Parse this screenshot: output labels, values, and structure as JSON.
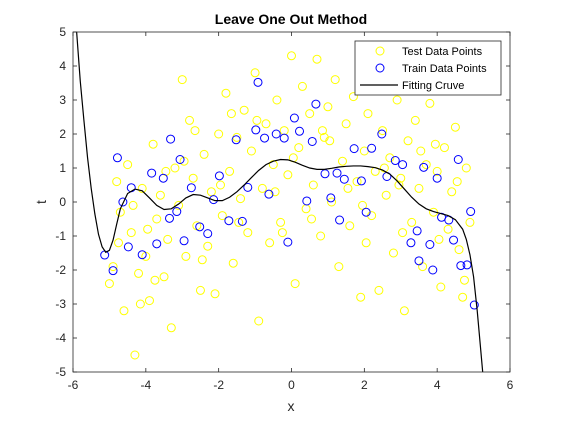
{
  "chart_data": {
    "type": "scatter",
    "title": "Leave One Out Method",
    "xlabel": "x",
    "ylabel": "t",
    "xlim": [
      -6,
      6
    ],
    "ylim": [
      -5,
      5
    ],
    "xticks": [
      "-6",
      "-4",
      "-2",
      "0",
      "2",
      "4",
      "6"
    ],
    "yticks": [
      "5",
      "4",
      "3",
      "2",
      "1",
      "0",
      "-1",
      "-2",
      "-3",
      "-4",
      "-5"
    ],
    "grid": false,
    "legend_position": "top-right",
    "series": [
      {
        "name": "Test Data Points",
        "kind": "markers",
        "marker": "open-circle",
        "color": "#ffff00",
        "points": [
          [
            -5.0,
            -2.4
          ],
          [
            -4.9,
            -1.9
          ],
          [
            -4.8,
            0.6
          ],
          [
            -4.7,
            -0.3
          ],
          [
            -4.6,
            -3.2
          ],
          [
            -4.5,
            1.1
          ],
          [
            -4.4,
            -0.9
          ],
          [
            -4.3,
            -4.5
          ],
          [
            -4.2,
            -2.1
          ],
          [
            -4.1,
            0.4
          ],
          [
            -4.0,
            -1.6
          ],
          [
            -3.9,
            -2.9
          ],
          [
            -3.8,
            1.7
          ],
          [
            -3.7,
            -0.5
          ],
          [
            -3.6,
            0.2
          ],
          [
            -3.5,
            -2.2
          ],
          [
            -3.4,
            -1.1
          ],
          [
            -3.3,
            -3.7
          ],
          [
            -3.2,
            1.0
          ],
          [
            -3.1,
            -0.1
          ],
          [
            -3.0,
            3.6
          ],
          [
            -2.9,
            -1.6
          ],
          [
            -2.8,
            2.4
          ],
          [
            -2.7,
            0.7
          ],
          [
            -2.6,
            -0.7
          ],
          [
            -2.5,
            -2.6
          ],
          [
            -2.4,
            1.4
          ],
          [
            -2.3,
            -1.3
          ],
          [
            -2.2,
            0.3
          ],
          [
            -2.1,
            -2.7
          ],
          [
            -2.0,
            2.0
          ],
          [
            -1.9,
            -0.4
          ],
          [
            -1.8,
            3.2
          ],
          [
            -1.7,
            0.9
          ],
          [
            -1.6,
            -1.8
          ],
          [
            -1.5,
            1.9
          ],
          [
            -1.4,
            0.1
          ],
          [
            -1.3,
            2.7
          ],
          [
            -1.2,
            -0.9
          ],
          [
            -1.1,
            1.5
          ],
          [
            -1.0,
            3.8
          ],
          [
            -0.9,
            -3.5
          ],
          [
            -0.8,
            0.4
          ],
          [
            -0.7,
            2.3
          ],
          [
            -0.6,
            -1.2
          ],
          [
            -0.5,
            1.1
          ],
          [
            -0.4,
            3.0
          ],
          [
            -0.3,
            -0.6
          ],
          [
            -0.2,
            2.1
          ],
          [
            -0.1,
            0.8
          ],
          [
            0.0,
            4.3
          ],
          [
            0.1,
            -2.4
          ],
          [
            0.2,
            1.6
          ],
          [
            0.3,
            3.4
          ],
          [
            0.4,
            -0.2
          ],
          [
            0.5,
            2.6
          ],
          [
            0.6,
            0.5
          ],
          [
            0.7,
            4.2
          ],
          [
            0.8,
            -1.0
          ],
          [
            0.9,
            1.9
          ],
          [
            1.0,
            2.8
          ],
          [
            1.1,
            0.0
          ],
          [
            1.2,
            3.6
          ],
          [
            1.3,
            -1.9
          ],
          [
            1.4,
            1.2
          ],
          [
            1.5,
            2.3
          ],
          [
            1.6,
            -0.7
          ],
          [
            1.7,
            3.1
          ],
          [
            1.8,
            0.6
          ],
          [
            1.9,
            -2.8
          ],
          [
            2.0,
            1.5
          ],
          [
            2.1,
            2.6
          ],
          [
            2.2,
            -0.4
          ],
          [
            2.3,
            0.9
          ],
          [
            2.4,
            -2.6
          ],
          [
            2.5,
            2.1
          ],
          [
            2.6,
            0.2
          ],
          [
            2.7,
            1.3
          ],
          [
            2.8,
            -1.5
          ],
          [
            2.9,
            3.0
          ],
          [
            3.0,
            0.7
          ],
          [
            3.1,
            -3.2
          ],
          [
            3.2,
            1.8
          ],
          [
            3.3,
            -0.6
          ],
          [
            3.4,
            2.4
          ],
          [
            3.5,
            0.4
          ],
          [
            3.6,
            -1.9
          ],
          [
            3.7,
            1.1
          ],
          [
            3.8,
            2.9
          ],
          [
            3.9,
            -0.3
          ],
          [
            4.0,
            0.9
          ],
          [
            4.1,
            -2.5
          ],
          [
            4.2,
            1.6
          ],
          [
            4.3,
            -0.8
          ],
          [
            4.4,
            0.3
          ],
          [
            4.5,
            2.2
          ],
          [
            4.6,
            -1.4
          ],
          [
            4.7,
            -2.8
          ],
          [
            4.8,
            1.0
          ],
          [
            4.9,
            -0.6
          ],
          [
            -4.75,
            -1.2
          ],
          [
            -4.35,
            -0.1
          ],
          [
            -3.95,
            -0.8
          ],
          [
            -3.45,
            0.9
          ],
          [
            -2.95,
            1.2
          ],
          [
            -2.45,
            -1.7
          ],
          [
            -1.95,
            0.5
          ],
          [
            -1.45,
            -0.6
          ],
          [
            -0.95,
            2.4
          ],
          [
            -0.45,
            0.3
          ],
          [
            0.05,
            1.3
          ],
          [
            0.55,
            -0.5
          ],
          [
            1.05,
            1.8
          ],
          [
            1.55,
            0.4
          ],
          [
            2.05,
            -1.2
          ],
          [
            2.55,
            1.0
          ],
          [
            3.05,
            -0.9
          ],
          [
            3.55,
            1.5
          ],
          [
            4.05,
            -1.1
          ],
          [
            4.55,
            0.6
          ],
          [
            -1.65,
            2.6
          ],
          [
            -0.25,
            -0.9
          ],
          [
            0.85,
            2.1
          ],
          [
            1.95,
            -0.1
          ],
          [
            2.95,
            0.5
          ],
          [
            3.95,
            1.7
          ],
          [
            -2.65,
            2.1
          ],
          [
            -3.75,
            -2.3
          ],
          [
            -4.15,
            -3.0
          ],
          [
            4.75,
            -2.3
          ]
        ]
      },
      {
        "name": "Train Data Points",
        "kind": "markers",
        "marker": "open-circle",
        "color": "#0000ff",
        "points": [
          [
            -5.13,
            -1.56
          ],
          [
            -4.9,
            -2.02
          ],
          [
            -4.78,
            1.3
          ],
          [
            -4.63,
            0.0
          ],
          [
            -4.48,
            -1.32
          ],
          [
            -4.4,
            0.42
          ],
          [
            -4.1,
            -1.55
          ],
          [
            -3.84,
            0.85
          ],
          [
            -3.7,
            -1.23
          ],
          [
            -3.52,
            0.7
          ],
          [
            -3.35,
            -0.48
          ],
          [
            -3.32,
            1.85
          ],
          [
            -3.15,
            -0.28
          ],
          [
            -3.06,
            1.25
          ],
          [
            -2.95,
            -1.14
          ],
          [
            -2.75,
            0.42
          ],
          [
            -2.52,
            -0.73
          ],
          [
            -2.3,
            -0.93
          ],
          [
            -2.14,
            0.07
          ],
          [
            -1.98,
            0.77
          ],
          [
            -1.72,
            -0.55
          ],
          [
            -1.52,
            1.83
          ],
          [
            -1.35,
            -0.57
          ],
          [
            -1.2,
            0.43
          ],
          [
            -0.98,
            2.12
          ],
          [
            -0.92,
            3.52
          ],
          [
            -0.74,
            1.88
          ],
          [
            -0.62,
            0.23
          ],
          [
            -0.42,
            2.0
          ],
          [
            -0.2,
            1.88
          ],
          [
            -0.1,
            -1.18
          ],
          [
            0.08,
            2.47
          ],
          [
            0.22,
            2.08
          ],
          [
            0.42,
            0.03
          ],
          [
            0.57,
            1.78
          ],
          [
            0.67,
            2.88
          ],
          [
            0.92,
            0.83
          ],
          [
            1.08,
            0.12
          ],
          [
            1.25,
            0.85
          ],
          [
            1.32,
            -0.53
          ],
          [
            1.45,
            0.67
          ],
          [
            1.72,
            1.57
          ],
          [
            1.92,
            0.62
          ],
          [
            2.05,
            -0.3
          ],
          [
            2.2,
            1.58
          ],
          [
            2.48,
            2.0
          ],
          [
            2.62,
            0.75
          ],
          [
            2.85,
            1.22
          ],
          [
            3.05,
            1.1
          ],
          [
            3.28,
            -1.2
          ],
          [
            3.45,
            -0.85
          ],
          [
            3.5,
            -1.73
          ],
          [
            3.63,
            1.02
          ],
          [
            3.8,
            -1.25
          ],
          [
            3.88,
            -2.0
          ],
          [
            4.0,
            0.7
          ],
          [
            4.12,
            -0.45
          ],
          [
            4.32,
            -0.53
          ],
          [
            4.45,
            -1.12
          ],
          [
            4.58,
            1.25
          ],
          [
            4.65,
            -1.87
          ],
          [
            4.82,
            -1.85
          ],
          [
            4.92,
            -0.28
          ],
          [
            5.02,
            -3.03
          ]
        ]
      },
      {
        "name": "Fitting Cruve",
        "kind": "line",
        "color": "#000000",
        "points": [
          [
            -5.9,
            5.0
          ],
          [
            -5.8,
            3.55
          ],
          [
            -5.7,
            2.4
          ],
          [
            -5.6,
            1.3
          ],
          [
            -5.5,
            0.4
          ],
          [
            -5.4,
            -0.35
          ],
          [
            -5.3,
            -0.95
          ],
          [
            -5.2,
            -1.32
          ],
          [
            -5.1,
            -1.48
          ],
          [
            -5.0,
            -1.42
          ],
          [
            -4.9,
            -1.12
          ],
          [
            -4.8,
            -0.65
          ],
          [
            -4.7,
            -0.2
          ],
          [
            -4.5,
            0.25
          ],
          [
            -4.3,
            0.38
          ],
          [
            -4.1,
            0.33
          ],
          [
            -3.9,
            0.12
          ],
          [
            -3.7,
            -0.1
          ],
          [
            -3.5,
            -0.22
          ],
          [
            -3.3,
            -0.2
          ],
          [
            -3.1,
            -0.06
          ],
          [
            -2.9,
            0.12
          ],
          [
            -2.7,
            0.22
          ],
          [
            -2.5,
            0.2
          ],
          [
            -2.3,
            0.12
          ],
          [
            -2.1,
            0.04
          ],
          [
            -1.9,
            0.04
          ],
          [
            -1.7,
            0.14
          ],
          [
            -1.5,
            0.3
          ],
          [
            -1.3,
            0.5
          ],
          [
            -1.1,
            0.72
          ],
          [
            -0.9,
            0.93
          ],
          [
            -0.7,
            1.1
          ],
          [
            -0.5,
            1.2
          ],
          [
            -0.3,
            1.25
          ],
          [
            -0.1,
            1.24
          ],
          [
            0.1,
            1.17
          ],
          [
            0.3,
            1.08
          ],
          [
            0.5,
            1.0
          ],
          [
            0.7,
            0.96
          ],
          [
            0.9,
            0.96
          ],
          [
            1.1,
            0.99
          ],
          [
            1.3,
            1.03
          ],
          [
            1.5,
            1.05
          ],
          [
            1.7,
            1.06
          ],
          [
            1.9,
            1.06
          ],
          [
            2.1,
            1.04
          ],
          [
            2.3,
            1.01
          ],
          [
            2.5,
            0.94
          ],
          [
            2.7,
            0.82
          ],
          [
            2.9,
            0.62
          ],
          [
            3.1,
            0.38
          ],
          [
            3.3,
            0.14
          ],
          [
            3.5,
            -0.06
          ],
          [
            3.7,
            -0.2
          ],
          [
            3.9,
            -0.28
          ],
          [
            4.1,
            -0.34
          ],
          [
            4.3,
            -0.4
          ],
          [
            4.5,
            -0.52
          ],
          [
            4.7,
            -0.8
          ],
          [
            4.8,
            -1.1
          ],
          [
            4.9,
            -1.55
          ],
          [
            5.0,
            -2.2
          ],
          [
            5.1,
            -3.2
          ],
          [
            5.2,
            -4.4
          ],
          [
            5.25,
            -5.0
          ]
        ]
      }
    ]
  }
}
